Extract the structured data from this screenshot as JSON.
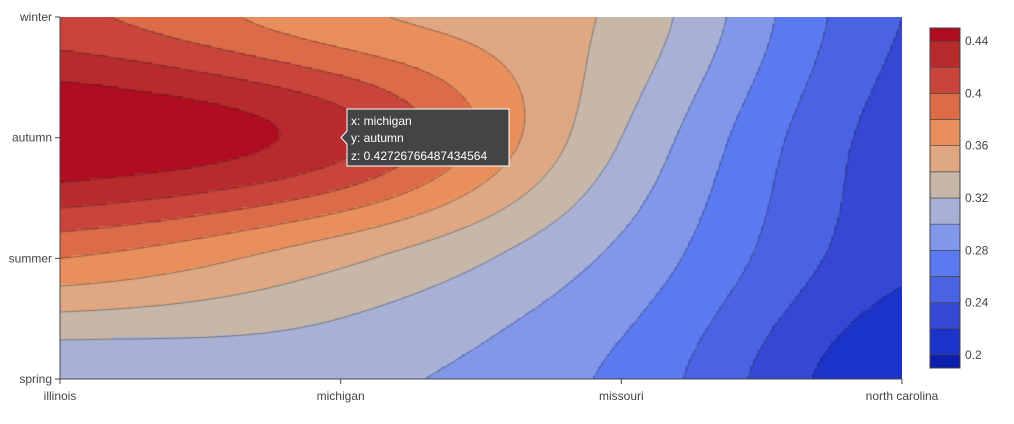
{
  "chart_data": {
    "type": "contour",
    "x": [
      "illinois",
      "michigan",
      "missouri",
      "north carolina"
    ],
    "y": [
      "spring",
      "summer",
      "autumn",
      "winter"
    ],
    "z": [
      [
        0.3,
        0.305,
        0.275,
        0.2
      ],
      [
        0.38,
        0.345,
        0.295,
        0.225
      ],
      [
        0.46,
        0.4273,
        0.32,
        0.23
      ],
      [
        0.405,
        0.365,
        0.335,
        0.24
      ]
    ],
    "contour_levels": [
      0.2,
      0.22,
      0.24,
      0.26,
      0.28,
      0.3,
      0.32,
      0.34,
      0.36,
      0.38,
      0.4,
      0.42,
      0.44
    ],
    "colorscale": [
      "#0a1dad",
      "#1c33c9",
      "#3448d4",
      "#4a63e2",
      "#5c7af0",
      "#8097ea",
      "#a8b1d5",
      "#c7b7a9",
      "#dfa782",
      "#e98f5c",
      "#dc6b48",
      "#c9443a",
      "#b82b2d",
      "#b10d20"
    ],
    "colorbar_ticks": [
      "0.2",
      "0.24",
      "0.28",
      "0.32",
      "0.36",
      "0.4",
      "0.44"
    ],
    "colorbar_range": [
      0.19,
      0.45
    ],
    "legend_position": "right"
  },
  "tooltip": {
    "x_line": "x: michigan",
    "y_line": "y: autumn",
    "z_line": "z: 0.42726766487434564"
  }
}
